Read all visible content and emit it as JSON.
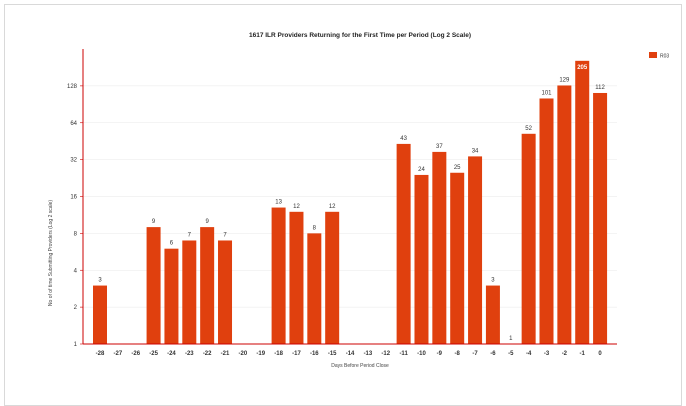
{
  "chart_data": {
    "type": "bar",
    "title": "1617 ILR Providers Returning for the First Time per Period    (Log 2 Scale)",
    "xlabel": "Days Before Period Close",
    "ylabel": "No of of time Submitting Providers (Log 2 scale)",
    "yscale": "log2",
    "ylim": [
      1,
      256
    ],
    "yticks": [
      1,
      2,
      4,
      8,
      16,
      32,
      64,
      128
    ],
    "grid": true,
    "legend_position": "top-right",
    "categories": [
      "-28",
      "-27",
      "-26",
      "-25",
      "-24",
      "-23",
      "-22",
      "-21",
      "-20",
      "-19",
      "-18",
      "-17",
      "-16",
      "-15",
      "-14",
      "-13",
      "-12",
      "-11",
      "-10",
      "-9",
      "-8",
      "-7",
      "-6",
      "-5",
      "-4",
      "-3",
      "-2",
      "-1",
      "0"
    ],
    "series": [
      {
        "name": "R03",
        "color": "#e0400e",
        "values": [
          3,
          null,
          null,
          9,
          6,
          7,
          9,
          7,
          null,
          null,
          13,
          12,
          8,
          12,
          null,
          null,
          null,
          43,
          24,
          37,
          25,
          34,
          3,
          1,
          52,
          101,
          129,
          205,
          112
        ]
      }
    ]
  },
  "colors": {
    "bar": "#e0400e",
    "axis": "#cc0000",
    "grid": "#e8e8e8"
  }
}
